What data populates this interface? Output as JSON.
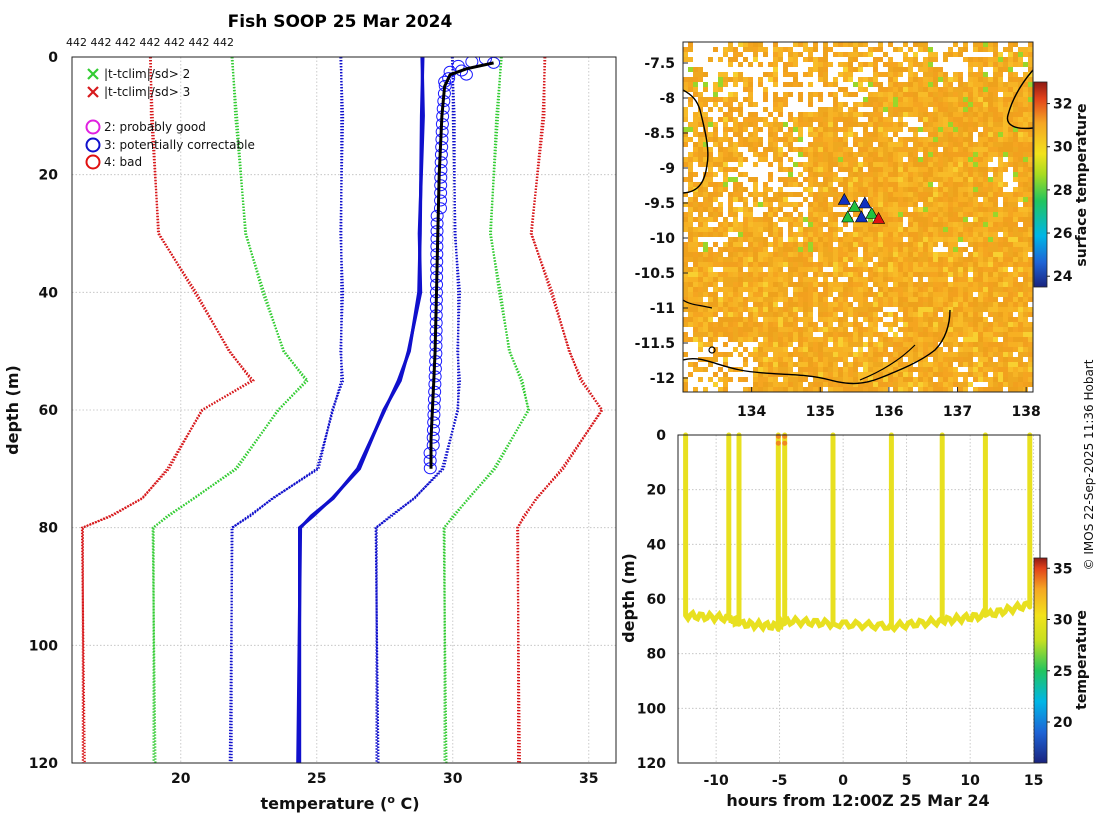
{
  "title": "Fish SOOP 25 Mar 2024",
  "cruise_ids": "442 442 442 442 442 442 442",
  "copyright": "© IMOS 22-Sep-2025 11:36 Hobart",
  "colors": {
    "clim_red": "#d7191c",
    "clim_green": "#33cc33",
    "clim_blue": "#1010cc",
    "obs_black": "#000000",
    "obs_marker": "#1a1aff"
  },
  "legend": {
    "flag_x_2": "|t-tclim|/sd> 2",
    "flag_x_3": "|t-tclim|/sd> 3",
    "qc_2": "2: probably good",
    "qc_3": "3: potentially correctable",
    "qc_4": "4: bad"
  },
  "chart_data": [
    {
      "id": "profile",
      "type": "line",
      "title": "Fish SOOP 25 Mar 2024",
      "xlabel": "temperature (°C)",
      "ylabel": "depth (m)",
      "xlim": [
        16,
        36
      ],
      "ylim": [
        120,
        0
      ],
      "xticks": [
        20,
        25,
        30,
        35
      ],
      "yticks": [
        0,
        20,
        40,
        60,
        80,
        100,
        120
      ],
      "grid": true,
      "series": [
        {
          "name": "clim -3sd",
          "color": "red",
          "style": "dotted",
          "t": [
            18.9,
            18.9,
            19.2,
            20.5,
            21.8,
            22.6,
            20.8,
            19.5,
            18.6,
            17.4,
            16.4,
            16.4
          ],
          "z": [
            0,
            10,
            30,
            40,
            50,
            55,
            60,
            70,
            75,
            78,
            80,
            120
          ]
        },
        {
          "name": "clim -2sd",
          "color": "green",
          "style": "dotted",
          "t": [
            21.9,
            22.0,
            22.4,
            23.0,
            23.8,
            24.6,
            23.6,
            22.0,
            20.5,
            19.5,
            19.0,
            19.0
          ],
          "z": [
            0,
            10,
            30,
            40,
            50,
            55,
            60,
            70,
            75,
            78,
            80,
            120
          ]
        },
        {
          "name": "clim -1sd",
          "color": "blue",
          "style": "dotted",
          "t": [
            25.9,
            25.9,
            25.9,
            25.9,
            25.9,
            25.9,
            25.6,
            25.0,
            23.4,
            22.5,
            21.9,
            21.8
          ],
          "z": [
            0,
            10,
            30,
            40,
            50,
            55,
            60,
            70,
            75,
            78,
            80,
            120
          ]
        },
        {
          "name": "clim mean",
          "color": "blue",
          "style": "solid",
          "t": [
            28.9,
            28.85,
            28.8,
            28.75,
            28.4,
            28.0,
            27.5,
            26.5,
            25.6,
            24.8,
            24.4,
            24.3
          ],
          "z": [
            0,
            10,
            30,
            40,
            50,
            55,
            60,
            70,
            75,
            78,
            80,
            120
          ]
        },
        {
          "name": "clim +1sd",
          "color": "blue",
          "style": "dotted",
          "t": [
            30.0,
            30.0,
            30.1,
            30.2,
            30.2,
            30.2,
            30.2,
            29.6,
            28.6,
            27.7,
            27.2,
            27.2
          ],
          "z": [
            0,
            10,
            30,
            40,
            50,
            55,
            60,
            70,
            75,
            78,
            80,
            120
          ]
        },
        {
          "name": "clim +2sd",
          "color": "green",
          "style": "dotted",
          "t": [
            31.8,
            31.6,
            31.4,
            31.7,
            32.1,
            32.5,
            32.8,
            31.5,
            30.6,
            30.0,
            29.7,
            29.7
          ],
          "z": [
            0,
            10,
            30,
            40,
            50,
            55,
            60,
            70,
            75,
            78,
            80,
            120
          ]
        },
        {
          "name": "clim +3sd",
          "color": "red",
          "style": "dotted",
          "t": [
            33.4,
            33.3,
            32.9,
            33.6,
            34.3,
            34.7,
            35.5,
            34.0,
            33.1,
            32.6,
            32.4,
            32.4
          ],
          "z": [
            0,
            10,
            30,
            40,
            50,
            55,
            60,
            70,
            75,
            78,
            80,
            120
          ]
        },
        {
          "name": "observed",
          "color": "black",
          "style": "solid",
          "t": [
            31.5,
            30.5,
            29.9,
            29.7,
            29.6,
            29.5,
            29.45,
            29.4,
            29.35,
            29.3,
            29.25,
            29.2,
            29.2
          ],
          "z": [
            1,
            2,
            3,
            5,
            10,
            20,
            30,
            40,
            50,
            55,
            60,
            65,
            70
          ]
        }
      ]
    },
    {
      "id": "surface_map",
      "type": "heatmap",
      "xlim": [
        133.0,
        138.1
      ],
      "ylim": [
        -12.2,
        -7.2
      ],
      "xticks": [
        134,
        135,
        136,
        137,
        138
      ],
      "yticks": [
        -7.5,
        -8,
        -8.5,
        -9,
        -9.5,
        -10,
        -10.5,
        -11,
        -11.5,
        -12
      ],
      "colorbar_label": "surface temperature",
      "colorbar_range": [
        23.5,
        33
      ],
      "colorbar_ticks": [
        24,
        26,
        28,
        30,
        32
      ],
      "markers": [
        {
          "lon": 135.35,
          "lat": -9.45
        },
        {
          "lon": 135.5,
          "lat": -9.55
        },
        {
          "lon": 135.65,
          "lat": -9.5
        },
        {
          "lon": 135.4,
          "lat": -9.7
        },
        {
          "lon": 135.6,
          "lat": -9.7
        },
        {
          "lon": 135.75,
          "lat": -9.65
        },
        {
          "lon": 135.85,
          "lat": -9.72
        }
      ]
    },
    {
      "id": "time_depth",
      "type": "scatter",
      "xlabel": "hours from 12:00Z 25 Mar 24",
      "ylabel": "depth (m)",
      "xlim": [
        -13,
        15.5
      ],
      "ylim": [
        120,
        0
      ],
      "xticks": [
        -10,
        -5,
        0,
        5,
        10,
        15
      ],
      "yticks": [
        0,
        20,
        40,
        60,
        80,
        100,
        120
      ],
      "colorbar_label": "temperature",
      "colorbar_range": [
        16,
        36
      ],
      "colorbar_ticks": [
        20,
        25,
        30,
        35
      ],
      "casts_hours": [
        -12.4,
        -9.0,
        -8.2,
        -5.1,
        -4.6,
        -0.8,
        3.8,
        7.8,
        11.2,
        14.7
      ],
      "bottom_depth_m": [
        66,
        67,
        69,
        70,
        68,
        69,
        70,
        68,
        66,
        62
      ]
    }
  ]
}
